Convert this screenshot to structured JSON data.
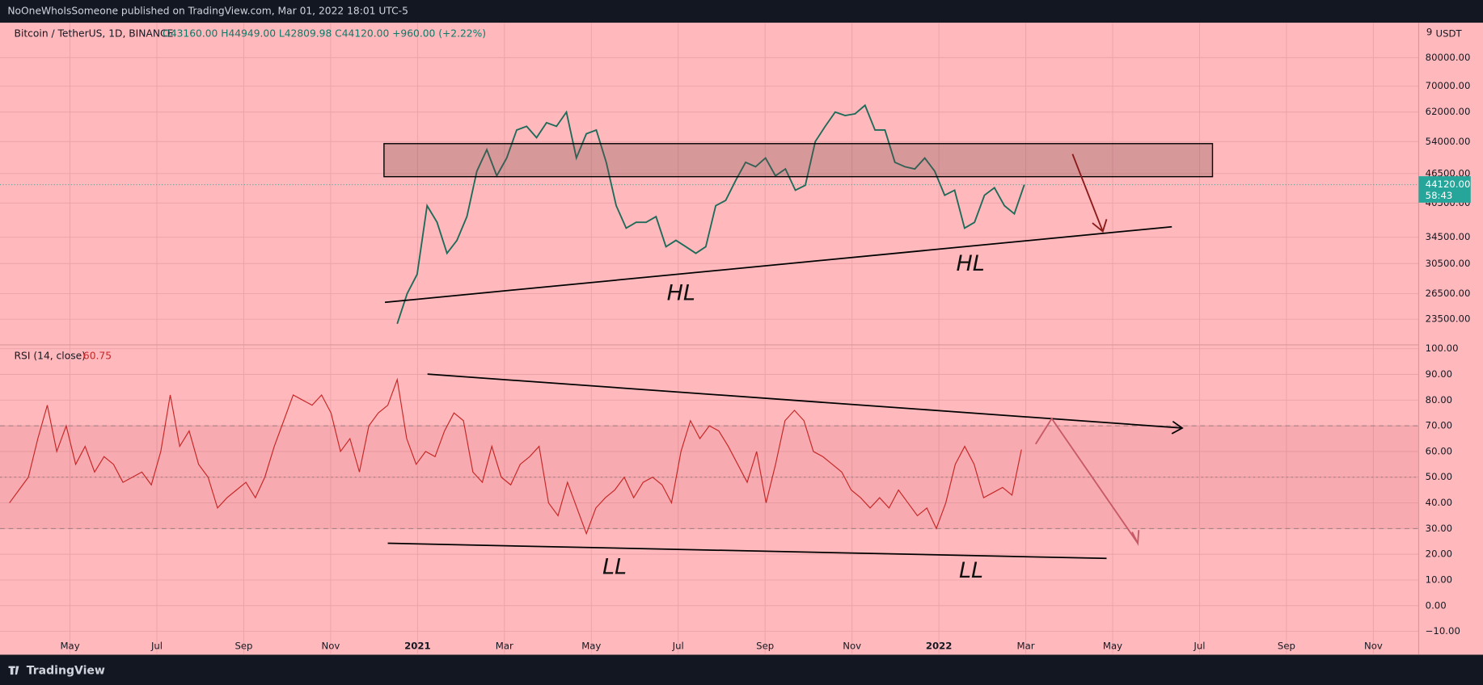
{
  "header": {
    "title": "NoOneWhoIsSomeone published on TradingView.com, Mar 01, 2022 18:01 UTC-5"
  },
  "footer": {
    "brand": "TradingView"
  },
  "time_axis": [
    "May",
    "Jul",
    "Sep",
    "Nov",
    "2021",
    "Mar",
    "May",
    "Jul",
    "Sep",
    "Nov",
    "2022",
    "Mar",
    "May",
    "Jul",
    "Sep",
    "Nov"
  ],
  "chart_data": [
    {
      "type": "line",
      "title": "Bitcoin / TetherUS, 1D, BINANCE",
      "subtitle": "O43160.00 H44949.00 L42809.98 C44120.00 +960.00 (+2.22%)",
      "y_unit": "USDT",
      "scale_badge": "9",
      "log": true,
      "grid": true,
      "color": "#1f6b5a",
      "values": [
        23000,
        26500,
        29000,
        40000,
        37000,
        32000,
        34000,
        38000,
        47000,
        52000,
        46000,
        50000,
        57000,
        58000,
        55000,
        59000,
        58000,
        62000,
        50000,
        56000,
        57000,
        49000,
        40000,
        36000,
        37000,
        37000,
        38000,
        33000,
        34000,
        33000,
        32000,
        33000,
        40000,
        41000,
        45000,
        49000,
        48000,
        50000,
        46000,
        47500,
        43000,
        44000,
        54000,
        58000,
        62000,
        61000,
        61500,
        64000,
        57000,
        57000,
        49000,
        48000,
        47500,
        50000,
        47000,
        42000,
        43000,
        36000,
        37000,
        42000,
        43500,
        40000,
        38500,
        44120
      ],
      "last_price": {
        "value": 44120,
        "label": "44120.00"
      },
      "countdown": "58:43",
      "ylim": [
        20840,
        94240
      ],
      "yticks": [
        {
          "value": 80000,
          "label": "80000.00"
        },
        {
          "value": 70000,
          "label": "70000.00"
        },
        {
          "value": 62000,
          "label": "62000.00"
        },
        {
          "value": 54000,
          "label": "54000.00"
        },
        {
          "value": 46500,
          "label": "46500.00"
        },
        {
          "value": 40500,
          "label": "40500.00"
        },
        {
          "value": 34500,
          "label": "34500.00"
        },
        {
          "value": 30500,
          "label": "30500.00"
        },
        {
          "value": 26500,
          "label": "26500.00"
        },
        {
          "value": 23500,
          "label": "23500.00"
        }
      ],
      "annotations": [
        "HL",
        "HL"
      ]
    },
    {
      "type": "line",
      "title": "RSI (14, close)",
      "grid": true,
      "color": "#c62828",
      "values": [
        40,
        45,
        50,
        65,
        78,
        60,
        70,
        55,
        62,
        52,
        58,
        55,
        48,
        50,
        52,
        47,
        60,
        82,
        62,
        68,
        55,
        50,
        38,
        42,
        45,
        48,
        42,
        50,
        62,
        72,
        82,
        80,
        78,
        82,
        75,
        60,
        65,
        52,
        70,
        75,
        78,
        88,
        65,
        55,
        60,
        58,
        68,
        75,
        72,
        52,
        48,
        62,
        50,
        47,
        55,
        58,
        62,
        40,
        35,
        48,
        38,
        28,
        38,
        42,
        45,
        50,
        42,
        48,
        50,
        47,
        40,
        60,
        72,
        65,
        70,
        68,
        62,
        55,
        48,
        60,
        40,
        55,
        72,
        76,
        72,
        60,
        58,
        55,
        52,
        45,
        42,
        38,
        42,
        38,
        45,
        40,
        35,
        38,
        30,
        40,
        55,
        62,
        55,
        42,
        44,
        46,
        43,
        60.75
      ],
      "bands": [
        30,
        50,
        70
      ],
      "ylim": [
        -18.75,
        101.5
      ],
      "yticks": [
        {
          "value": 100,
          "label": "100.00"
        },
        {
          "value": 90,
          "label": "90.00"
        },
        {
          "value": 80,
          "label": "80.00"
        },
        {
          "value": 70,
          "label": "70.00"
        },
        {
          "value": 60,
          "label": "60.00"
        },
        {
          "value": 50,
          "label": "50.00"
        },
        {
          "value": 40,
          "label": "40.00"
        },
        {
          "value": 30,
          "label": "30.00"
        },
        {
          "value": 20,
          "label": "20.00"
        },
        {
          "value": 10,
          "label": "10.00"
        },
        {
          "value": 0,
          "label": "0.00"
        },
        {
          "value": -10,
          "label": "−10.00"
        }
      ],
      "annotations": [
        "LL",
        "LL"
      ]
    }
  ]
}
